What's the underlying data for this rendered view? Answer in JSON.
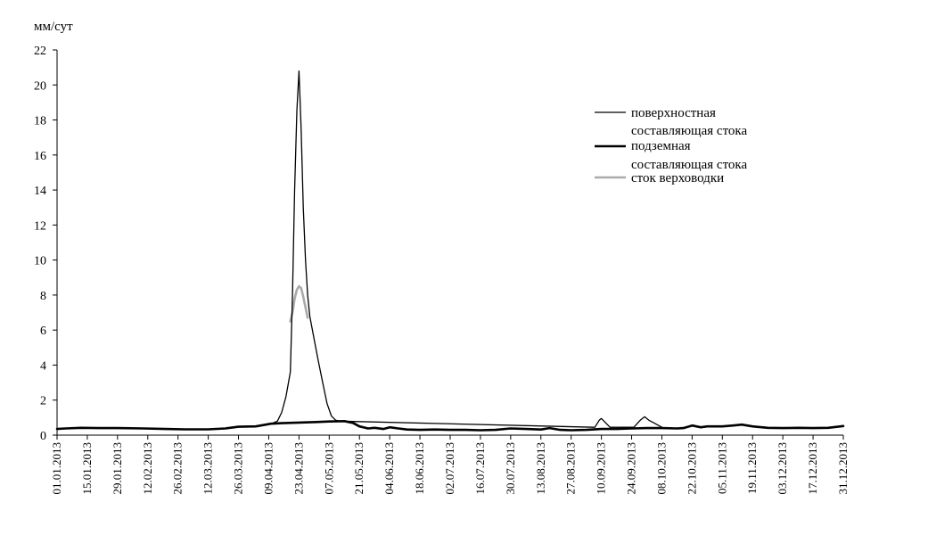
{
  "chart_data": {
    "type": "line",
    "y_unit": "мм/сут",
    "ylim": [
      0,
      22
    ],
    "y_ticks": [
      0,
      2,
      4,
      6,
      8,
      10,
      12,
      14,
      16,
      18,
      20,
      22
    ],
    "x_range": [
      "01.01.2013",
      "31.12.2013"
    ],
    "x_tick_labels": [
      "01.01.2013",
      "15.01.2013",
      "29.01.2013",
      "12.02.2013",
      "26.02.2013",
      "12.03.2013",
      "26.03.2013",
      "09.04.2013",
      "23.04.2013",
      "07.05.2013",
      "21.05.2013",
      "04.06.2013",
      "18.06.2013",
      "02.07.2013",
      "16.07.2013",
      "30.07.2013",
      "13.08.2013",
      "27.08.2013",
      "10.09.2013",
      "24.09.2013",
      "08.10.2013",
      "22.10.2013",
      "05.11.2013",
      "19.11.2013",
      "03.12.2013",
      "17.12.2013",
      "31.12.2013"
    ],
    "grid": false,
    "legend_position": "top-right",
    "legend": [
      {
        "line1": "поверхностная",
        "line2": ""
      },
      {
        "line1": "составляющая стока",
        "line2": "подземная"
      },
      {
        "line1": "составляющая стока",
        "line2": "сток верховодки"
      }
    ],
    "series": [
      {
        "name": "поверхностная",
        "color": "#000000",
        "style": "thin",
        "points": [
          [
            "11.04.2013",
            0.7
          ],
          [
            "13.04.2013",
            0.8
          ],
          [
            "15.04.2013",
            1.3
          ],
          [
            "17.04.2013",
            2.2
          ],
          [
            "19.04.2013",
            3.6
          ],
          [
            "20.04.2013",
            8.0
          ],
          [
            "21.04.2013",
            14.0
          ],
          [
            "22.04.2013",
            18.5
          ],
          [
            "23.04.2013",
            20.8
          ],
          [
            "24.04.2013",
            17.5
          ],
          [
            "25.04.2013",
            13.0
          ],
          [
            "26.04.2013",
            10.0
          ],
          [
            "27.04.2013",
            8.0
          ],
          [
            "28.04.2013",
            6.8
          ],
          [
            "30.04.2013",
            5.5
          ],
          [
            "02.05.2013",
            4.2
          ],
          [
            "04.05.2013",
            3.0
          ],
          [
            "06.05.2013",
            1.8
          ],
          [
            "08.05.2013",
            1.1
          ],
          [
            "10.05.2013",
            0.85
          ],
          [
            "12.05.2013",
            0.8
          ],
          [
            "07.09.2013",
            0.45
          ],
          [
            "09.09.2013",
            0.85
          ],
          [
            "10.09.2013",
            0.95
          ],
          [
            "12.09.2013",
            0.7
          ],
          [
            "14.09.2013",
            0.45
          ],
          [
            "25.09.2013",
            0.45
          ],
          [
            "28.09.2013",
            0.85
          ],
          [
            "30.09.2013",
            1.05
          ],
          [
            "02.10.2013",
            0.85
          ],
          [
            "05.10.2013",
            0.65
          ],
          [
            "08.10.2013",
            0.45
          ]
        ]
      },
      {
        "name": "подземная",
        "color": "#000000",
        "style": "thick",
        "points": [
          [
            "01.01.2013",
            0.35
          ],
          [
            "05.01.2013",
            0.38
          ],
          [
            "12.01.2013",
            0.42
          ],
          [
            "20.01.2013",
            0.4
          ],
          [
            "29.01.2013",
            0.4
          ],
          [
            "10.02.2013",
            0.38
          ],
          [
            "20.02.2013",
            0.35
          ],
          [
            "01.03.2013",
            0.33
          ],
          [
            "12.03.2013",
            0.33
          ],
          [
            "20.03.2013",
            0.38
          ],
          [
            "26.03.2013",
            0.48
          ],
          [
            "03.04.2013",
            0.5
          ],
          [
            "10.04.2013",
            0.65
          ],
          [
            "15.04.2013",
            0.68
          ],
          [
            "23.04.2013",
            0.72
          ],
          [
            "01.05.2013",
            0.75
          ],
          [
            "07.05.2013",
            0.78
          ],
          [
            "14.05.2013",
            0.8
          ],
          [
            "18.05.2013",
            0.7
          ],
          [
            "21.05.2013",
            0.5
          ],
          [
            "25.05.2013",
            0.38
          ],
          [
            "28.05.2013",
            0.42
          ],
          [
            "01.06.2013",
            0.35
          ],
          [
            "04.06.2013",
            0.45
          ],
          [
            "08.06.2013",
            0.38
          ],
          [
            "12.06.2013",
            0.32
          ],
          [
            "18.06.2013",
            0.3
          ],
          [
            "25.06.2013",
            0.32
          ],
          [
            "02.07.2013",
            0.3
          ],
          [
            "09.07.2013",
            0.3
          ],
          [
            "16.07.2013",
            0.28
          ],
          [
            "23.07.2013",
            0.3
          ],
          [
            "30.07.2013",
            0.38
          ],
          [
            "06.08.2013",
            0.35
          ],
          [
            "13.08.2013",
            0.32
          ],
          [
            "17.08.2013",
            0.4
          ],
          [
            "22.08.2013",
            0.3
          ],
          [
            "27.08.2013",
            0.28
          ],
          [
            "03.09.2013",
            0.3
          ],
          [
            "10.09.2013",
            0.35
          ],
          [
            "17.09.2013",
            0.35
          ],
          [
            "24.09.2013",
            0.38
          ],
          [
            "01.10.2013",
            0.4
          ],
          [
            "08.10.2013",
            0.4
          ],
          [
            "15.10.2013",
            0.38
          ],
          [
            "18.10.2013",
            0.4
          ],
          [
            "22.10.2013",
            0.55
          ],
          [
            "26.10.2013",
            0.45
          ],
          [
            "29.10.2013",
            0.5
          ],
          [
            "05.11.2013",
            0.5
          ],
          [
            "10.11.2013",
            0.55
          ],
          [
            "14.11.2013",
            0.6
          ],
          [
            "19.11.2013",
            0.5
          ],
          [
            "26.11.2013",
            0.42
          ],
          [
            "03.12.2013",
            0.4
          ],
          [
            "10.12.2013",
            0.42
          ],
          [
            "17.12.2013",
            0.4
          ],
          [
            "24.12.2013",
            0.42
          ],
          [
            "31.12.2013",
            0.52
          ]
        ]
      },
      {
        "name": "сток верховодки",
        "color": "#aaaaaa",
        "style": "gray",
        "points": [
          [
            "19.04.2013",
            6.5
          ],
          [
            "20.04.2013",
            7.0
          ],
          [
            "21.04.2013",
            7.8
          ],
          [
            "22.04.2013",
            8.3
          ],
          [
            "23.04.2013",
            8.5
          ],
          [
            "24.04.2013",
            8.4
          ],
          [
            "25.04.2013",
            7.9
          ],
          [
            "26.04.2013",
            7.3
          ],
          [
            "27.04.2013",
            6.7
          ]
        ]
      }
    ]
  }
}
